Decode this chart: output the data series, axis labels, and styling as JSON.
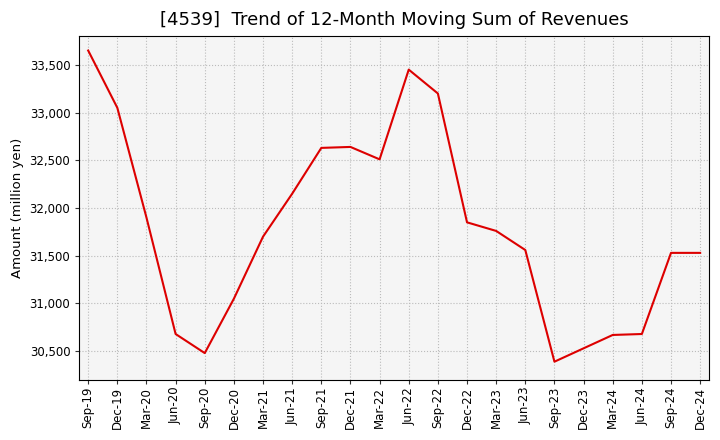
{
  "title": "[4539]  Trend of 12-Month Moving Sum of Revenues",
  "ylabel": "Amount (million yen)",
  "line_color": "#dd0000",
  "background_color": "#ffffff",
  "plot_bg_color": "#f5f5f5",
  "grid_color": "#bbbbbb",
  "labels": [
    "Sep-19",
    "Dec-19",
    "Mar-20",
    "Jun-20",
    "Sep-20",
    "Dec-20",
    "Mar-21",
    "Jun-21",
    "Sep-21",
    "Dec-21",
    "Mar-22",
    "Jun-22",
    "Sep-22",
    "Dec-22",
    "Mar-23",
    "Jun-23",
    "Sep-23",
    "Dec-23",
    "Mar-24",
    "Jun-24",
    "Sep-24",
    "Dec-24"
  ],
  "values": [
    33650,
    33050,
    31900,
    30680,
    30480,
    31050,
    31700,
    32150,
    32630,
    32640,
    32510,
    33450,
    33200,
    31850,
    31760,
    31560,
    30390,
    30530,
    30670,
    30680,
    31530,
    31530
  ],
  "ylim_min": 30200,
  "ylim_max": 33800,
  "yticks": [
    30500,
    31000,
    31500,
    32000,
    32500,
    33000,
    33500
  ],
  "title_fontsize": 13,
  "label_fontsize": 9.5,
  "tick_fontsize": 8.5
}
